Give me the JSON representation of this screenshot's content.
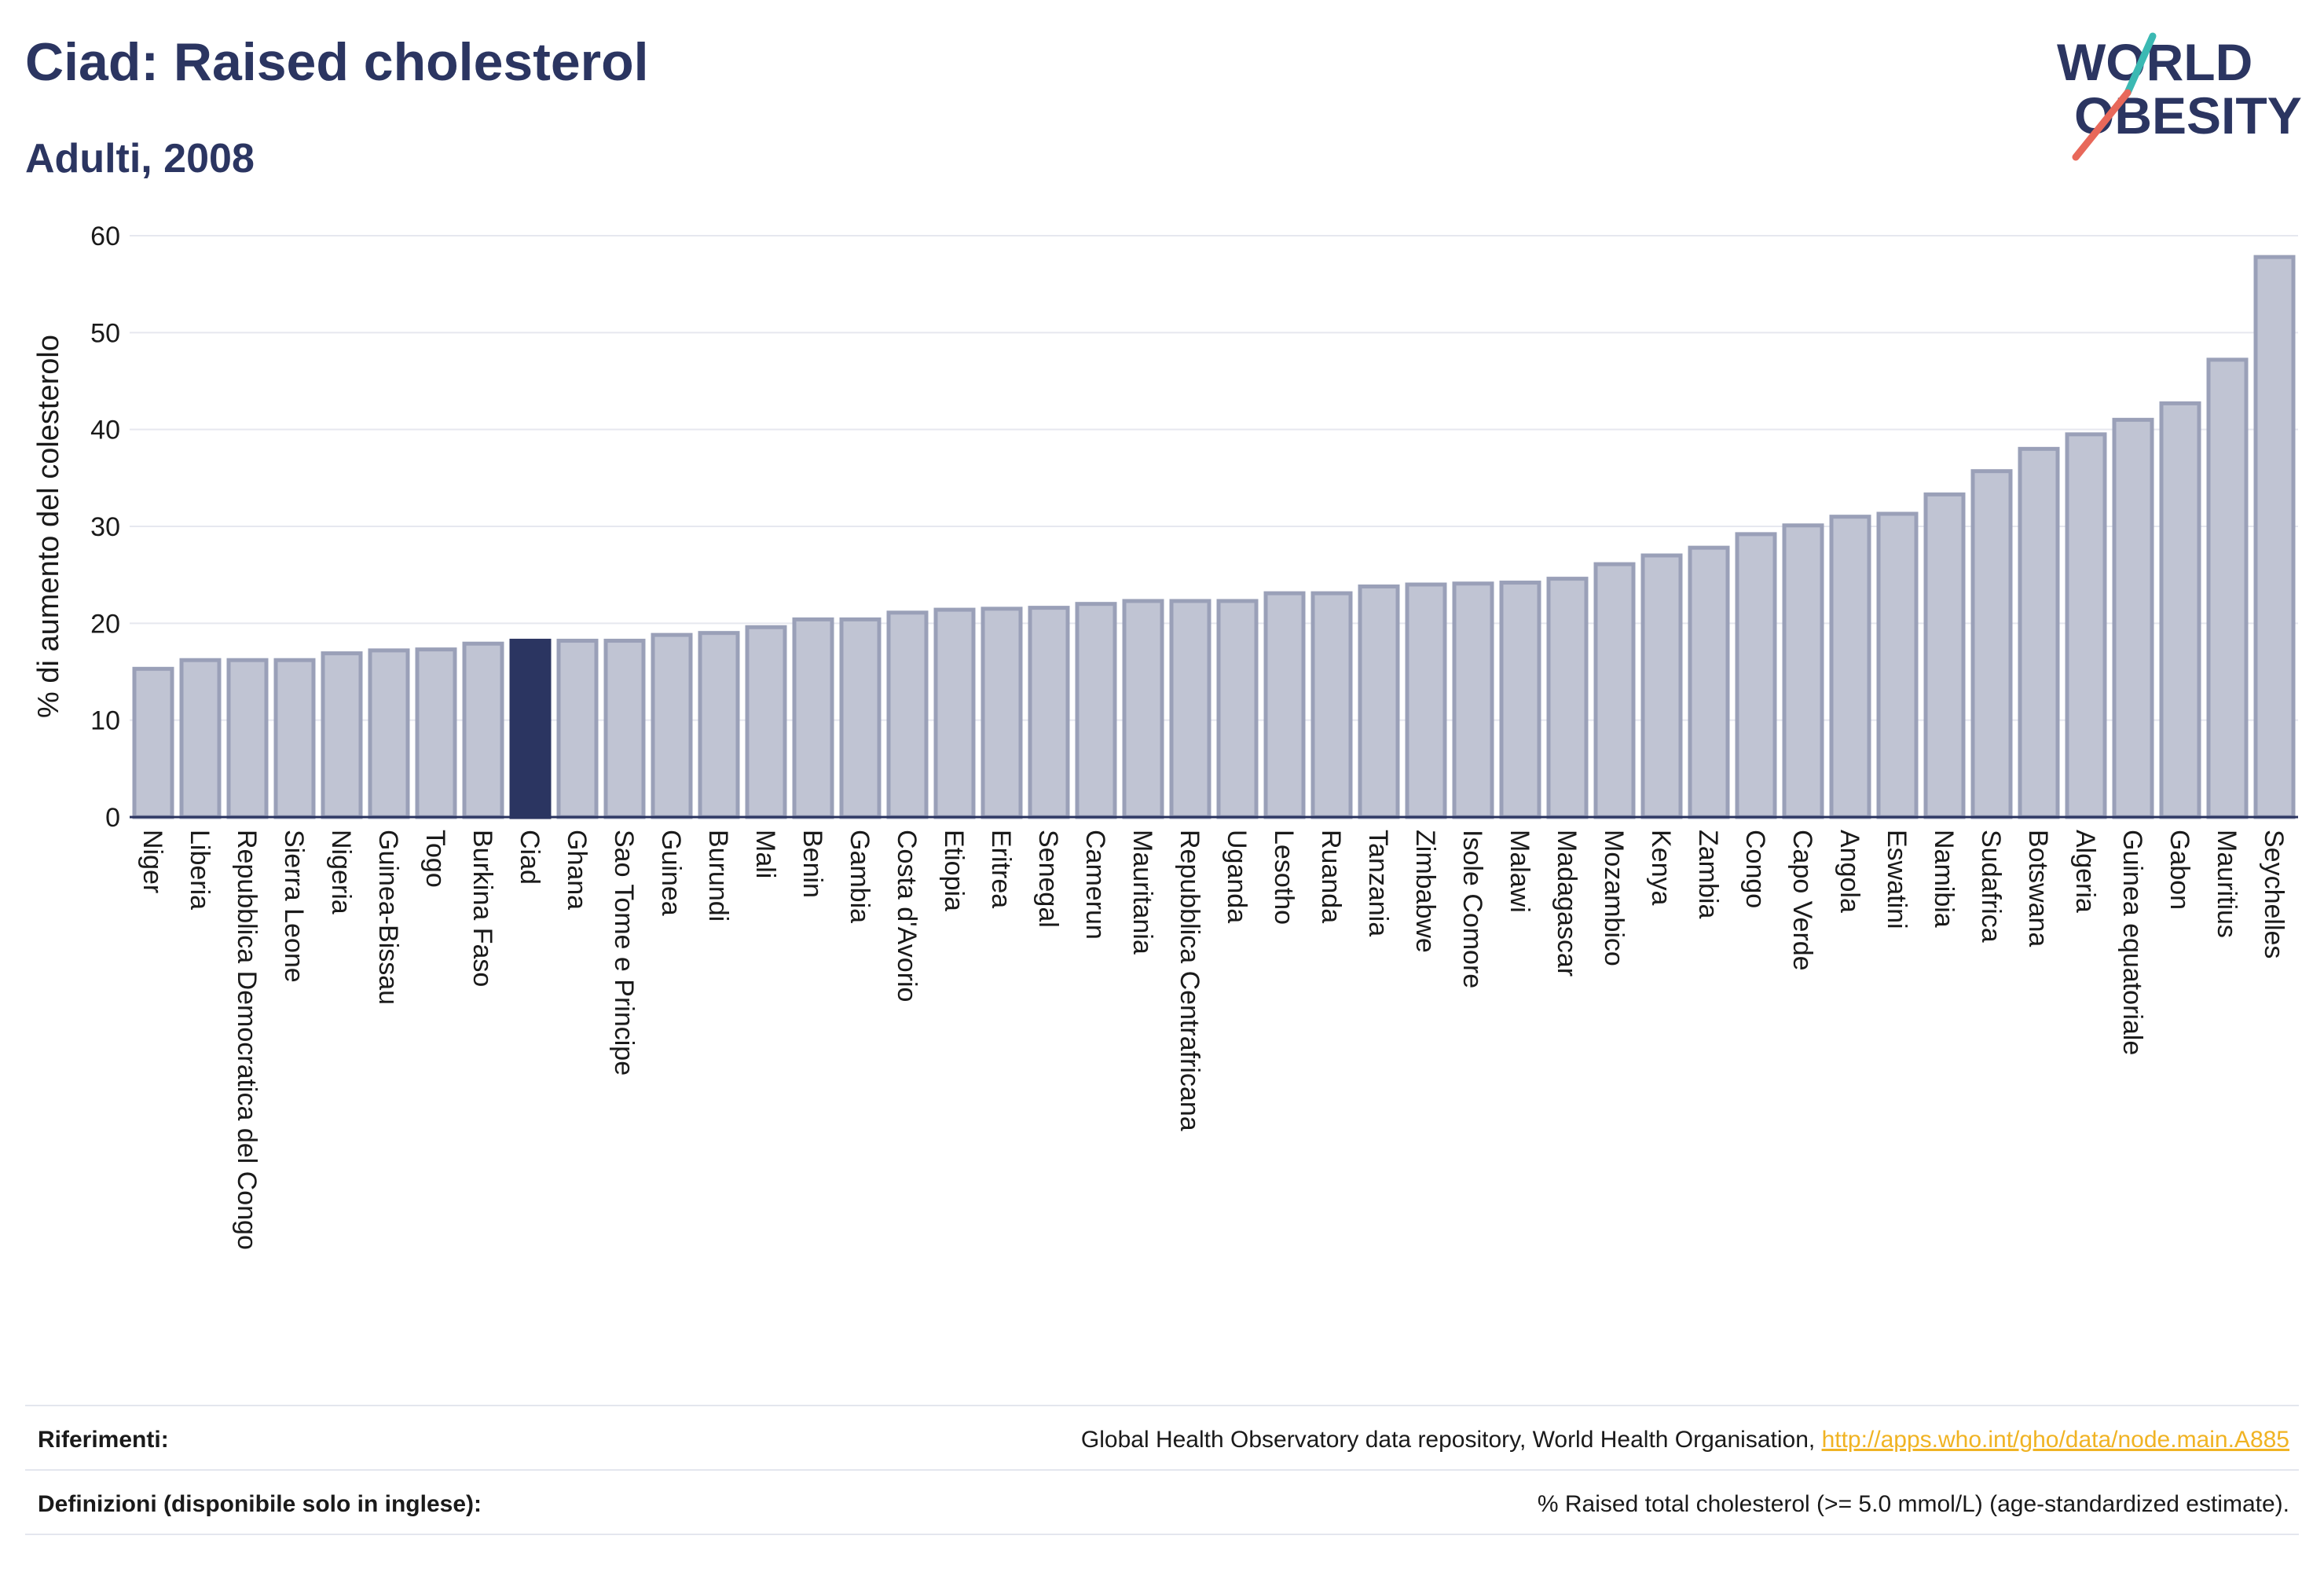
{
  "title": "Ciad: Raised cholesterol",
  "subtitle": "Adulti, 2008",
  "logo": {
    "line1": "WORLD",
    "line2": "OBESITY",
    "accent_colors": [
      "#3bb9b3",
      "#e8685a"
    ]
  },
  "colors": {
    "highlight": "#2b3561",
    "bar_fill": "#c0c4d3",
    "bar_stroke": "#9aa0b8",
    "grid": "#e6e8ef",
    "axis": "#2b3561"
  },
  "chart_data": {
    "type": "bar",
    "title": "Ciad: Raised cholesterol",
    "subtitle": "Adulti, 2008",
    "xlabel": "",
    "ylabel": "% di aumento del colesterolo",
    "ylim": [
      0,
      60
    ],
    "yticks": [
      0,
      10,
      20,
      30,
      40,
      50,
      60
    ],
    "grid": true,
    "highlight": "Ciad",
    "categories": [
      "Niger",
      "Liberia",
      "Repubblica Democratica del Congo",
      "Sierra Leone",
      "Nigeria",
      "Guinea-Bissau",
      "Togo",
      "Burkina Faso",
      "Ciad",
      "Ghana",
      "Sao Tome e Principe",
      "Guinea",
      "Burundi",
      "Mali",
      "Benin",
      "Gambia",
      "Costa d'Avorio",
      "Etiopia",
      "Eritrea",
      "Senegal",
      "Camerun",
      "Mauritania",
      "Repubblica Centrafricana",
      "Uganda",
      "Lesotho",
      "Ruanda",
      "Tanzania",
      "Zimbabwe",
      "Isole Comore",
      "Malawi",
      "Madagascar",
      "Mozambico",
      "Kenya",
      "Zambia",
      "Congo",
      "Capo Verde",
      "Angola",
      "Eswatini",
      "Namibia",
      "Sudafrica",
      "Botswana",
      "Algeria",
      "Guinea equatoriale",
      "Gabon",
      "Mauritius",
      "Seychelles"
    ],
    "values": [
      15.3,
      16.2,
      16.2,
      16.2,
      16.9,
      17.2,
      17.3,
      17.9,
      18.2,
      18.2,
      18.2,
      18.8,
      19.0,
      19.6,
      20.4,
      20.4,
      21.1,
      21.4,
      21.5,
      21.6,
      22.0,
      22.3,
      22.3,
      22.3,
      23.1,
      23.1,
      23.8,
      24.0,
      24.1,
      24.2,
      24.6,
      26.1,
      27.0,
      27.8,
      29.2,
      30.1,
      31.0,
      31.3,
      33.3,
      35.7,
      38.0,
      39.5,
      41.0,
      42.7,
      47.2,
      57.8
    ]
  },
  "footer": {
    "references_label": "Riferimenti:",
    "references_text": "Global Health Observatory data repository, World Health Organisation, ",
    "references_link": "http://apps.who.int/gho/data/node.main.A885",
    "definitions_label": "Definizioni (disponibile solo in inglese):",
    "definitions_text": "% Raised total cholesterol (>= 5.0 mmol/L) (age-standardized estimate)."
  }
}
